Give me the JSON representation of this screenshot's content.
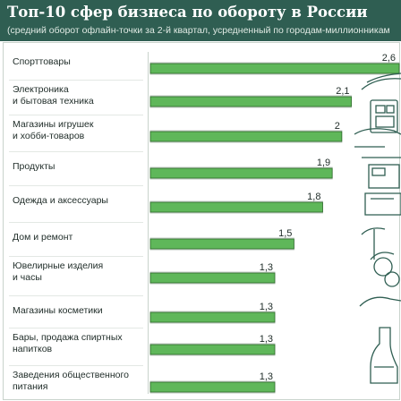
{
  "header": {
    "title": "Топ-10 сфер бизнеса по обороту в России",
    "subtitle": "(средний оборот офлайн-точки за 2-й квартал, усредненный по городам-миллионникам"
  },
  "colors": {
    "header_bg": "#2f5e52",
    "bar_fill": "#5fb75a",
    "bar_border": "#2d6b2a"
  },
  "chart_data": {
    "type": "bar",
    "orientation": "horizontal",
    "title": "Топ-10 сфер бизнеса по обороту в России",
    "subtitle": "(средний оборот офлайн-точки за 2-й квартал, усредненный по городам-миллионникам",
    "categories": [
      "Спорттовары",
      "Электроника\nи бытовая техника",
      "Магазины игрушек\nи хобби-товаров",
      "Продукты",
      "Одежда и аксессуары",
      "Дом и ремонт",
      "Ювелирные изделия\nи часы",
      "Магазины косметики",
      "Бары, продажа спиртных\nнапитков",
      "Заведения общественного\nпитания"
    ],
    "values": [
      2.6,
      2.1,
      2.0,
      1.9,
      1.8,
      1.5,
      1.3,
      1.3,
      1.3,
      1.3
    ],
    "value_labels": [
      "2,6",
      "2,1",
      "2",
      "1,9",
      "1,8",
      "1,5",
      "1,3",
      "1,3",
      "1,3",
      "1,3"
    ],
    "xlim": [
      0,
      2.6
    ],
    "grid": false,
    "legend": "none"
  }
}
